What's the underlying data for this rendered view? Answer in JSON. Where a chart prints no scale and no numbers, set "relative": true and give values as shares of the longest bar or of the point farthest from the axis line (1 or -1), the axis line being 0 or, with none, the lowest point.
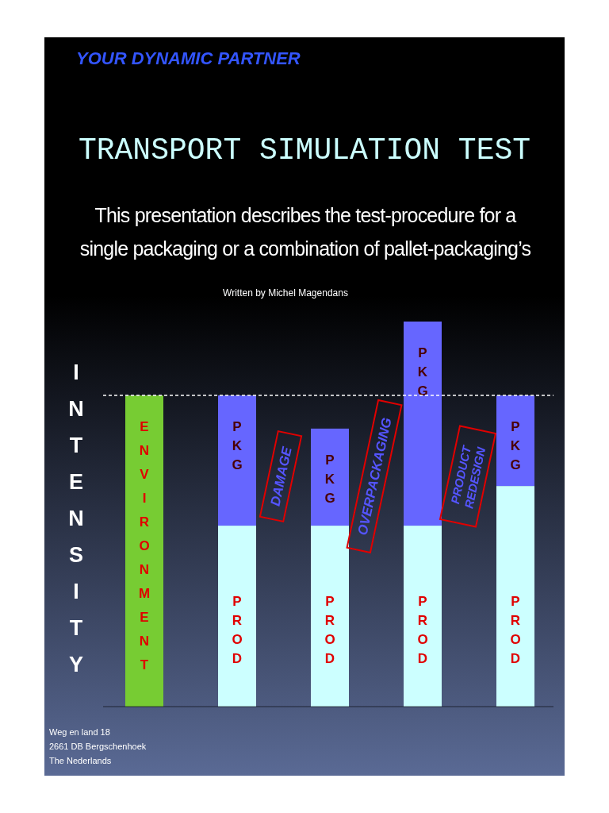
{
  "chart_data": {
    "type": "bar",
    "title": "TRANSPORT SIMULATION TEST",
    "subtitle": "This presentation describes the test-procedure for a single packaging or a combination of pallet-packaging’s",
    "ylabel": "INTENSITY",
    "relative": true,
    "stacked": true,
    "legend": false,
    "categories": [
      null,
      null,
      null,
      null,
      null
    ],
    "series": [
      {
        "name": "ENVIRONMENT",
        "color": "#77cc33",
        "values": [
          0.808,
          null,
          null,
          null,
          null
        ]
      },
      {
        "name": "PROD",
        "color": "#ccffff",
        "values": [
          null,
          0.47,
          0.47,
          0.47,
          0.573
        ]
      },
      {
        "name": "PKG",
        "color": "#6666ff",
        "values": [
          null,
          0.338,
          0.252,
          0.53,
          0.235
        ]
      }
    ],
    "ref_lines": [
      {
        "axis": "y",
        "value": 0.808,
        "line_style": "dashed",
        "color": "#ffffff"
      }
    ],
    "annotations": [
      "DAMAGE",
      "OVERPACKAGING",
      "PRODUCT REDESIGN",
      "YOUR DYNAMIC PARTNER",
      "Written by Michel Magendans",
      "Weg en land 18",
      "2661 DB Bergschenhoek",
      "The Nederlands"
    ]
  }
}
